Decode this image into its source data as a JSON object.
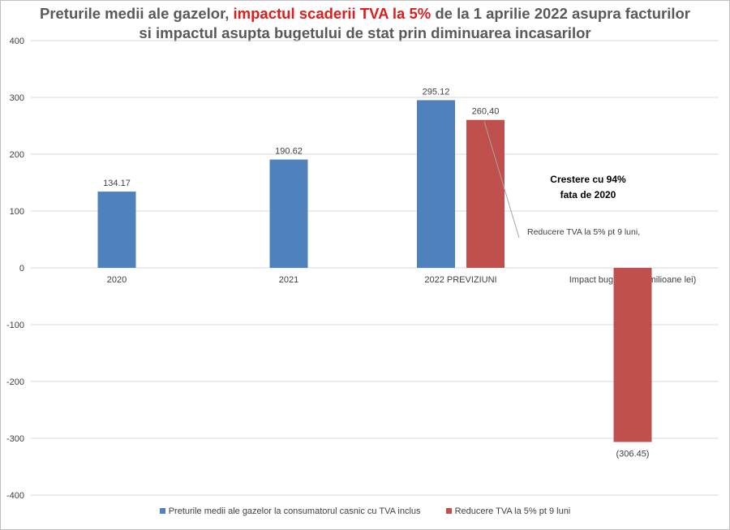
{
  "chart_data": {
    "type": "bar",
    "title_parts": [
      {
        "text": "Preturile  medii ale gazelor, ",
        "highlight": false
      },
      {
        "text": "impactul scaderii TVA la 5%",
        "highlight": true
      },
      {
        "text": " de la 1 aprilie  2022 asupra facturilor  si impactul  asupta bugetului de stat prin diminuarea incasarilor",
        "highlight": false
      }
    ],
    "categories": [
      "2020",
      "2021",
      "2022 PREVIZIUNI",
      "Impact bugetar (10xmilioane lei)"
    ],
    "series": [
      {
        "name": "Preturile medii ale gazelor la consumatorul casnic cu TVA inclus",
        "color": "#4f81bd",
        "values": [
          134.17,
          190.62,
          295.12,
          null
        ],
        "labels": [
          "134.17",
          "190.62",
          "295.12",
          ""
        ]
      },
      {
        "name": "Reducere TVA la 5% pt 9 luni",
        "color": "#c0504d",
        "values": [
          null,
          null,
          260.4,
          -306.45
        ],
        "labels": [
          "",
          "",
          "260,40",
          "(306.45)"
        ]
      }
    ],
    "ylim": [
      -400,
      400
    ],
    "yticks": [
      "400",
      "300",
      "200",
      "100",
      "0",
      "-100",
      "-200",
      "-300",
      "-400"
    ],
    "ytick_values": [
      400,
      300,
      200,
      100,
      0,
      -100,
      -200,
      -300,
      -400
    ],
    "grid": true,
    "legend_position": "bottom",
    "annotations": {
      "growth_line1": "Crestere cu 94%",
      "growth_line2": "fata de 2020",
      "callout": "Reducere TVA la 5% pt 9 luni,"
    }
  }
}
